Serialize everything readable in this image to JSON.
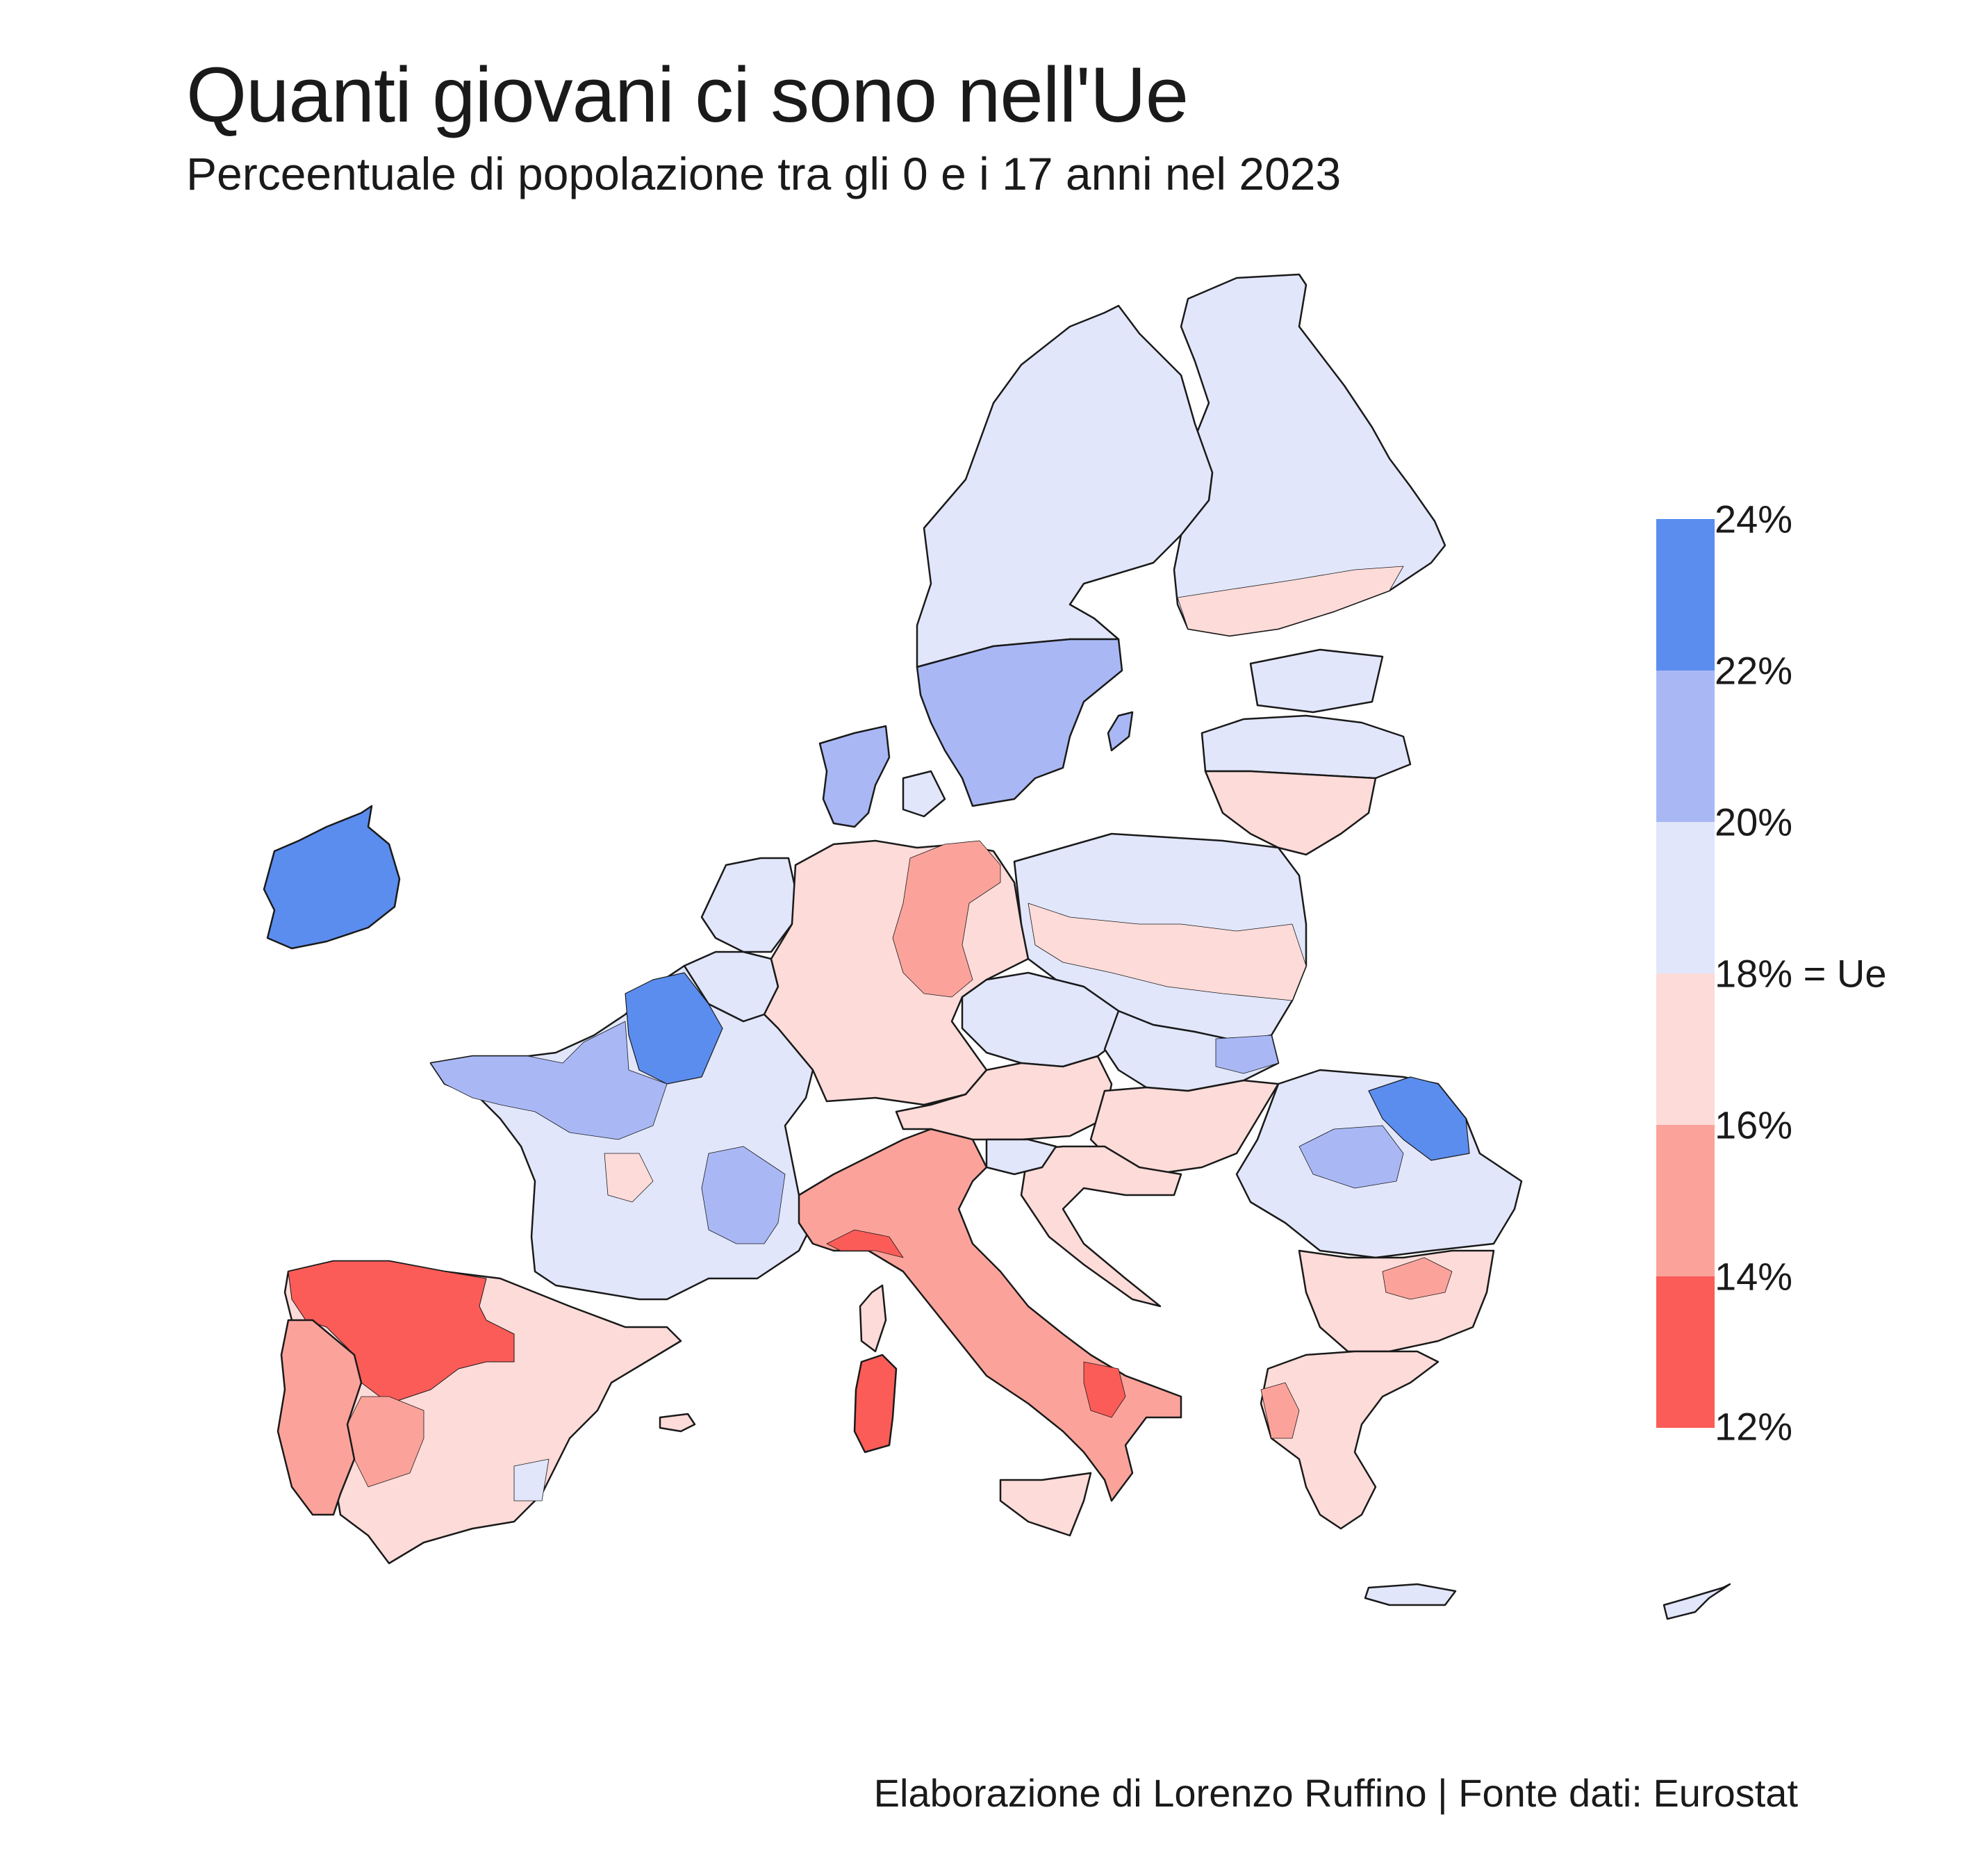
{
  "title": "Quanti giovani ci sono nell'Ue",
  "subtitle": "Perceentuale di popolazione tra gli 0 e i 17 anni nel 2023",
  "caption": "Elaborazione di Lorenzo Ruffino | Fonte dati: Eurostat",
  "legend": {
    "breaks": [
      "24%",
      "22%",
      "20%",
      "18% = Ue",
      "16%",
      "14%",
      "12%"
    ],
    "bins": [
      {
        "range": "22-24%",
        "color": "#5b8def"
      },
      {
        "range": "20-22%",
        "color": "#a9b8f5"
      },
      {
        "range": "18-20%",
        "color": "#e1e6fb"
      },
      {
        "range": "16-18%",
        "color": "#fddbd8"
      },
      {
        "range": "14-16%",
        "color": "#fba39b"
      },
      {
        "range": "12-14%",
        "color": "#fb5c58"
      }
    ]
  },
  "map_regions": [
    {
      "name": "Ireland",
      "bin": "22-24%"
    },
    {
      "name": "Finland",
      "bin": "18-20%"
    },
    {
      "name": "Sweden north",
      "bin": "18-20%"
    },
    {
      "name": "Sweden south",
      "bin": "20-22%"
    },
    {
      "name": "Estonia",
      "bin": "18-20%"
    },
    {
      "name": "Latvia",
      "bin": "18-20%"
    },
    {
      "name": "Lithuania",
      "bin": "16-18%"
    },
    {
      "name": "Denmark",
      "bin": "20-22%"
    },
    {
      "name": "Netherlands",
      "bin": "18-20%"
    },
    {
      "name": "Belgium",
      "bin": "18-20%"
    },
    {
      "name": "Germany",
      "bin": "16-18%"
    },
    {
      "name": "Germany east",
      "bin": "14-16%"
    },
    {
      "name": "Poland",
      "bin": "18-20%"
    },
    {
      "name": "Czechia",
      "bin": "18-20%"
    },
    {
      "name": "Slovakia",
      "bin": "18-20%"
    },
    {
      "name": "Austria",
      "bin": "16-18%"
    },
    {
      "name": "Hungary",
      "bin": "16-18%"
    },
    {
      "name": "Romania",
      "bin": "18-20%"
    },
    {
      "name": "Romania northeast",
      "bin": "22-24%"
    },
    {
      "name": "Bulgaria",
      "bin": "16-18%"
    },
    {
      "name": "Greece",
      "bin": "16-18%"
    },
    {
      "name": "Croatia",
      "bin": "16-18%"
    },
    {
      "name": "Slovenia",
      "bin": "18-20%"
    },
    {
      "name": "France",
      "bin": "18-20%"
    },
    {
      "name": "France north",
      "bin": "22-24%"
    },
    {
      "name": "France west",
      "bin": "20-22%"
    },
    {
      "name": "Italy",
      "bin": "14-16%"
    },
    {
      "name": "Italy south",
      "bin": "12-14%"
    },
    {
      "name": "Sardinia",
      "bin": "12-14%"
    },
    {
      "name": "Sicily",
      "bin": "16-18%"
    },
    {
      "name": "Spain",
      "bin": "16-18%"
    },
    {
      "name": "Spain northwest",
      "bin": "12-14%"
    },
    {
      "name": "Portugal",
      "bin": "14-16%"
    },
    {
      "name": "Cyprus",
      "bin": "18-20%"
    }
  ]
}
